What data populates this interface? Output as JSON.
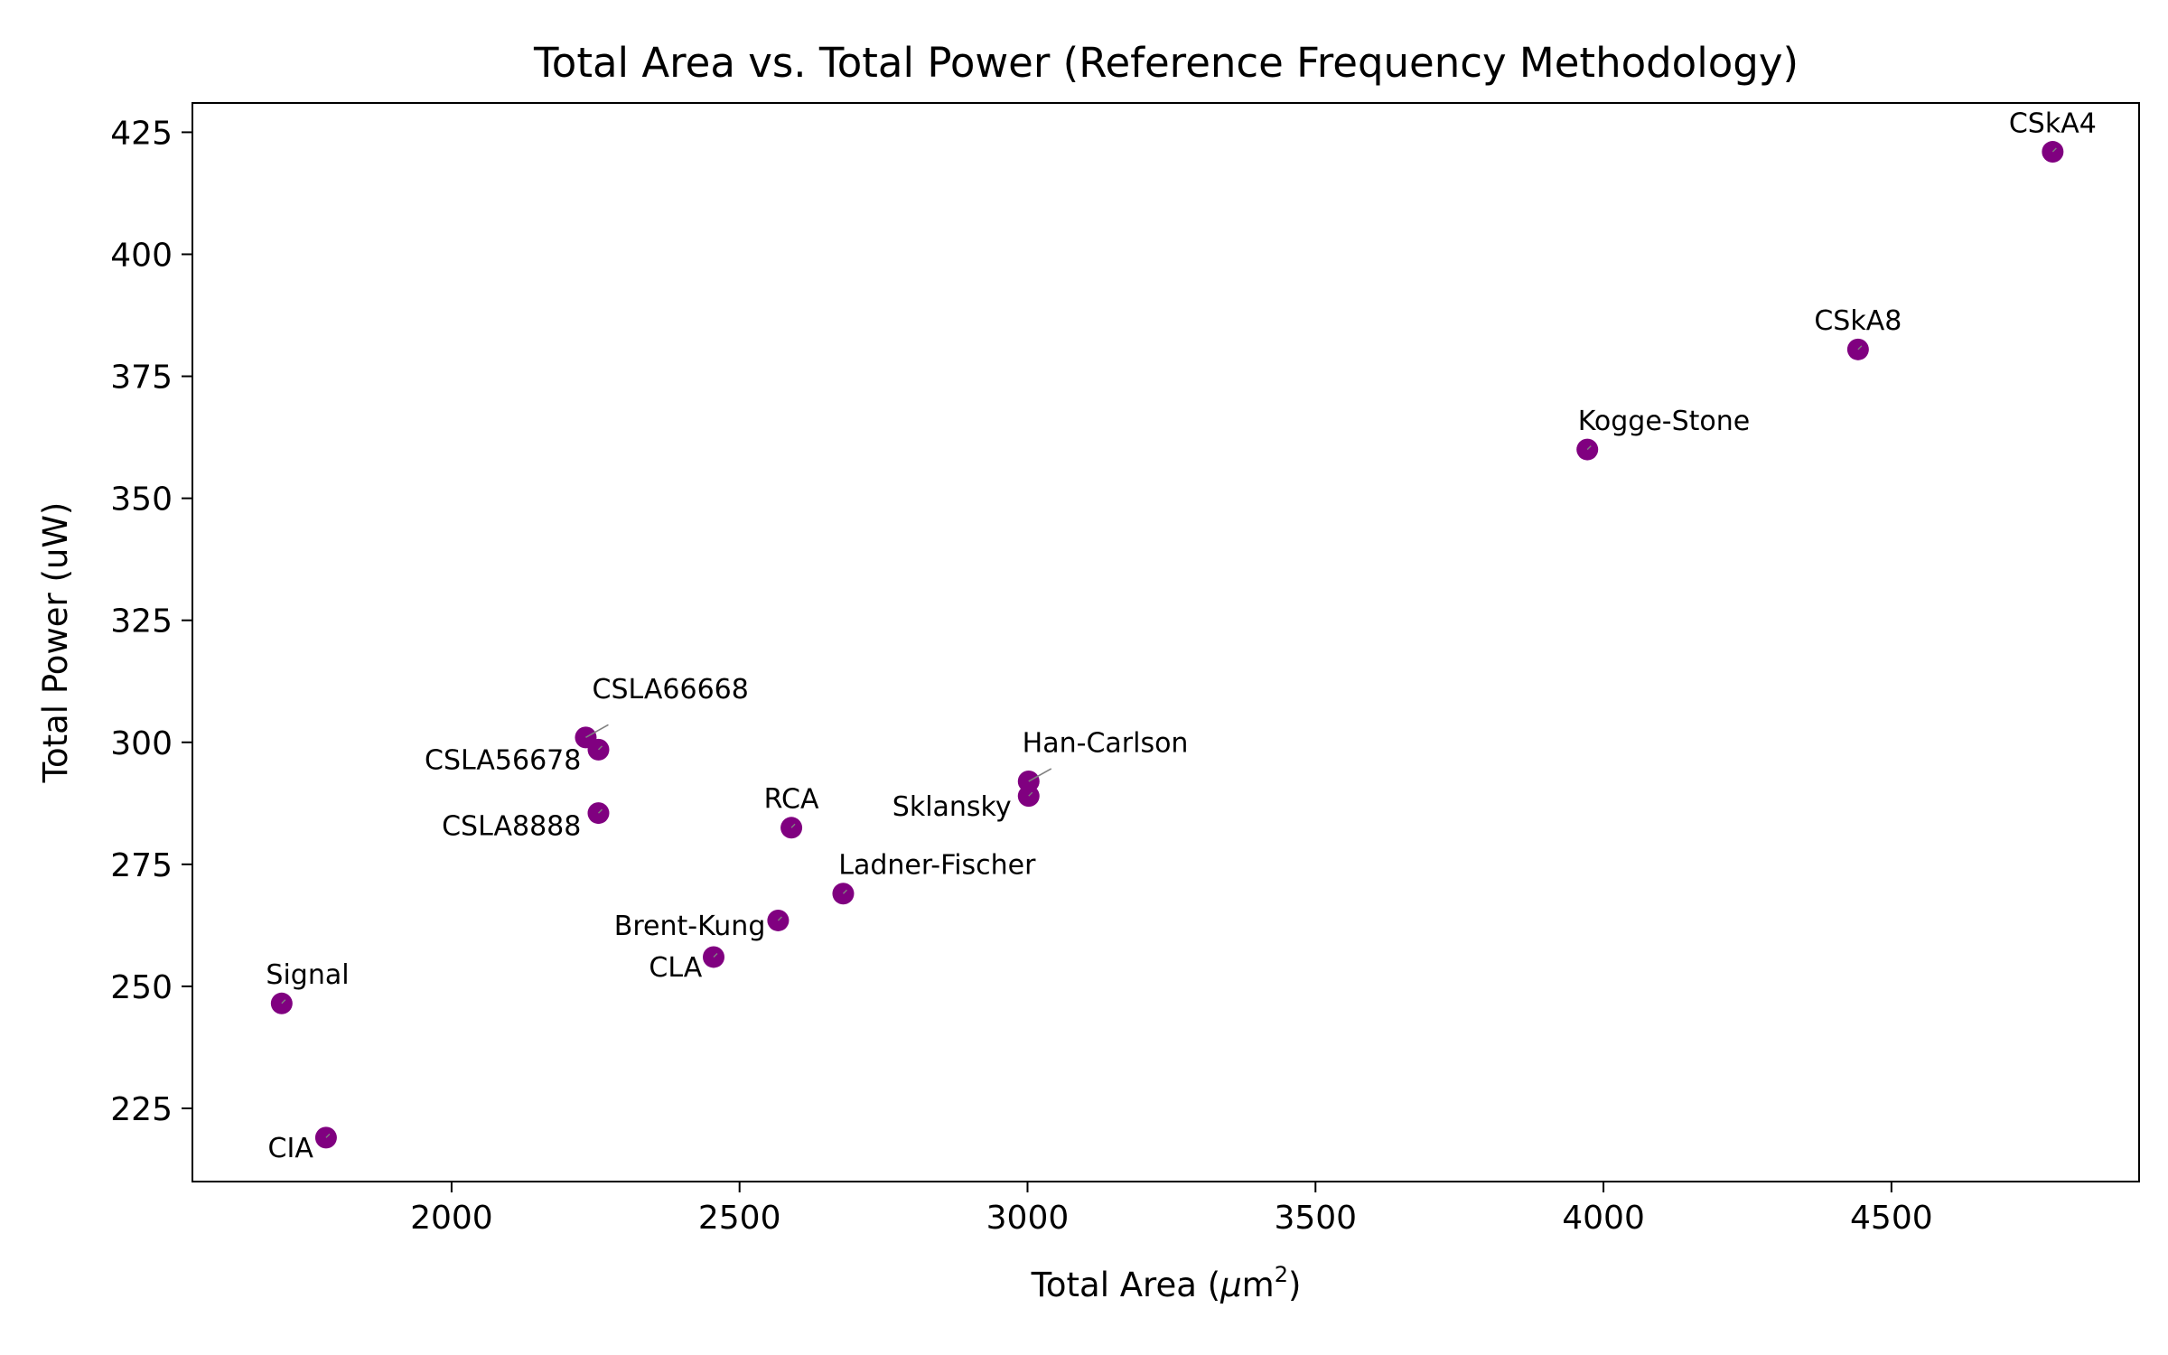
{
  "chart_data": {
    "type": "scatter",
    "title": "Total Area vs. Total Power (Reference Frequency Methodology)",
    "xlabel_prefix": "Total Area (",
    "xlabel_mu": "μ",
    "xlabel_unit": "m",
    "xlabel_sup": "2",
    "xlabel_suffix": ")",
    "ylabel": "Total Power (uW)",
    "xlim": [
      1550,
      4930
    ],
    "ylim": [
      210,
      431
    ],
    "xticks": [
      2000,
      2500,
      3000,
      3500,
      4000,
      4500
    ],
    "yticks": [
      225,
      250,
      275,
      300,
      325,
      350,
      375,
      400,
      425
    ],
    "point_color": "#800080",
    "leader_color": "#808080",
    "grid": false,
    "points": [
      {
        "name": "CSkA4",
        "x": 4780,
        "y": 421,
        "lx": 4780,
        "ly": 425,
        "anchor": "middle"
      },
      {
        "name": "CSkA8",
        "x": 4442,
        "y": 380.5,
        "lx": 4442,
        "ly": 384.5,
        "anchor": "middle"
      },
      {
        "name": "Kogge-Stone",
        "x": 3972,
        "y": 360,
        "lx": 4105,
        "ly": 364,
        "anchor": "middle"
      },
      {
        "name": "CSLA66668",
        "x": 2233,
        "y": 301,
        "lx": 2380,
        "ly": 309,
        "anchor": "middle",
        "leader": true
      },
      {
        "name": "CSLA56678",
        "x": 2255,
        "y": 298.5,
        "lx": 2225,
        "ly": 294.5,
        "anchor": "end"
      },
      {
        "name": "CSLA8888",
        "x": 2255,
        "y": 285.5,
        "lx": 2225,
        "ly": 281,
        "anchor": "end"
      },
      {
        "name": "RCA",
        "x": 2590,
        "y": 282.5,
        "lx": 2590,
        "ly": 286.5,
        "anchor": "middle"
      },
      {
        "name": "Han-Carlson",
        "x": 3002,
        "y": 292,
        "lx": 3135,
        "ly": 298,
        "anchor": "middle",
        "leader": true
      },
      {
        "name": "Sklansky",
        "x": 3002,
        "y": 289,
        "lx": 2972,
        "ly": 285,
        "anchor": "end"
      },
      {
        "name": "Ladner-Fischer",
        "x": 2680,
        "y": 269,
        "lx": 2843,
        "ly": 273,
        "anchor": "middle"
      },
      {
        "name": "Brent-Kung",
        "x": 2567,
        "y": 263.5,
        "lx": 2545,
        "ly": 260.5,
        "anchor": "end"
      },
      {
        "name": "CLA",
        "x": 2455,
        "y": 256,
        "lx": 2435,
        "ly": 252,
        "anchor": "end"
      },
      {
        "name": "Signal",
        "x": 1705,
        "y": 246.5,
        "lx": 1750,
        "ly": 250.5,
        "anchor": "middle"
      },
      {
        "name": "CIA",
        "x": 1782,
        "y": 219,
        "lx": 1760,
        "ly": 215,
        "anchor": "end"
      }
    ]
  }
}
